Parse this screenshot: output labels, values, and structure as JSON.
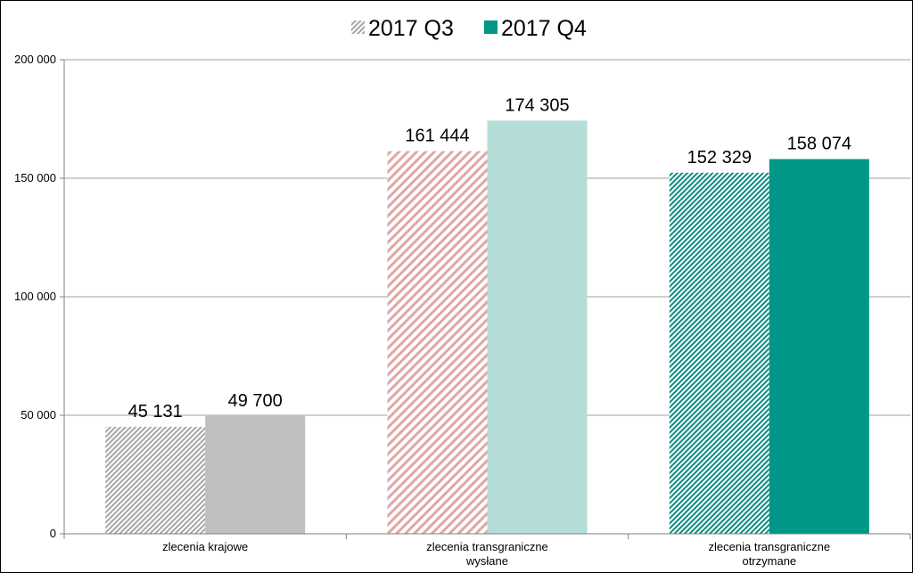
{
  "chart_data": {
    "type": "bar",
    "categories": [
      [
        "zlecenia krajowe"
      ],
      [
        "zlecenia transgraniczne",
        "wysłane"
      ],
      [
        "zlecenia transgraniczne",
        "otrzymane"
      ]
    ],
    "series": [
      {
        "name": "2017 Q3",
        "values": [
          45131,
          161444,
          152329
        ],
        "labels": [
          "45 131",
          "161 444",
          "152 329"
        ]
      },
      {
        "name": "2017 Q4",
        "values": [
          49700,
          174305,
          158074
        ],
        "labels": [
          "49 700",
          "174 305",
          "158 074"
        ]
      }
    ],
    "ylim": [
      0,
      200000
    ],
    "yticks": [
      0,
      50000,
      100000,
      150000,
      200000
    ],
    "ytick_labels": [
      "0",
      "50 000",
      "100 000",
      "150 000",
      "200 000"
    ],
    "grid": true,
    "legend_position": "top-center",
    "colors": {
      "q4_by_category": [
        "#bfbfbf",
        "#b3ddd6",
        "#009688"
      ],
      "q3_stripe_by_category": [
        "#a6a6a6",
        "#e0a6a6",
        "#0c8c80"
      ],
      "q3_legend_stripe": "#a6a6a6",
      "q4_legend": "#009688",
      "gridline": "#a0a0a0",
      "axis": "#808080"
    }
  }
}
